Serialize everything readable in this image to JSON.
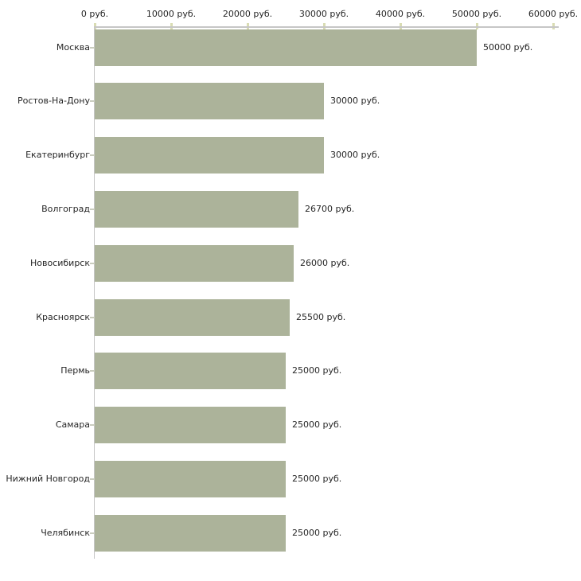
{
  "chart_data": {
    "type": "bar",
    "orientation": "horizontal",
    "title": "",
    "xlabel": "",
    "ylabel": "",
    "xlim": [
      0,
      60000
    ],
    "grid": false,
    "legend": false,
    "x_tick_values": [
      0,
      10000,
      20000,
      30000,
      40000,
      50000,
      60000
    ],
    "x_tick_labels": [
      "0 руб.",
      "10000 руб.",
      "20000 руб.",
      "30000 руб.",
      "40000 руб.",
      "50000 руб.",
      "60000 руб."
    ],
    "categories": [
      "Москва",
      "Ростов-На-Дону",
      "Екатеринбург",
      "Волгоград",
      "Новосибирск",
      "Красноярск",
      "Пермь",
      "Самара",
      "Нижний Новгород",
      "Челябинск"
    ],
    "values": [
      50000,
      30000,
      30000,
      26700,
      26000,
      25500,
      25000,
      25000,
      25000,
      25000
    ],
    "value_labels": [
      "50000 руб.",
      "30000 руб.",
      "30000 руб.",
      "26700 руб.",
      "26000 руб.",
      "25500 руб.",
      "25000 руб.",
      "25000 руб.",
      "25000 руб.",
      "25000 руб."
    ],
    "colors": {
      "bar": "#acb39a",
      "axis_line": "#c6c6c6",
      "x_tick_mark": "#d9dcb3",
      "y_tick_mark": "#c9ccbe",
      "text": "#262626",
      "background": "#ffffff"
    }
  }
}
